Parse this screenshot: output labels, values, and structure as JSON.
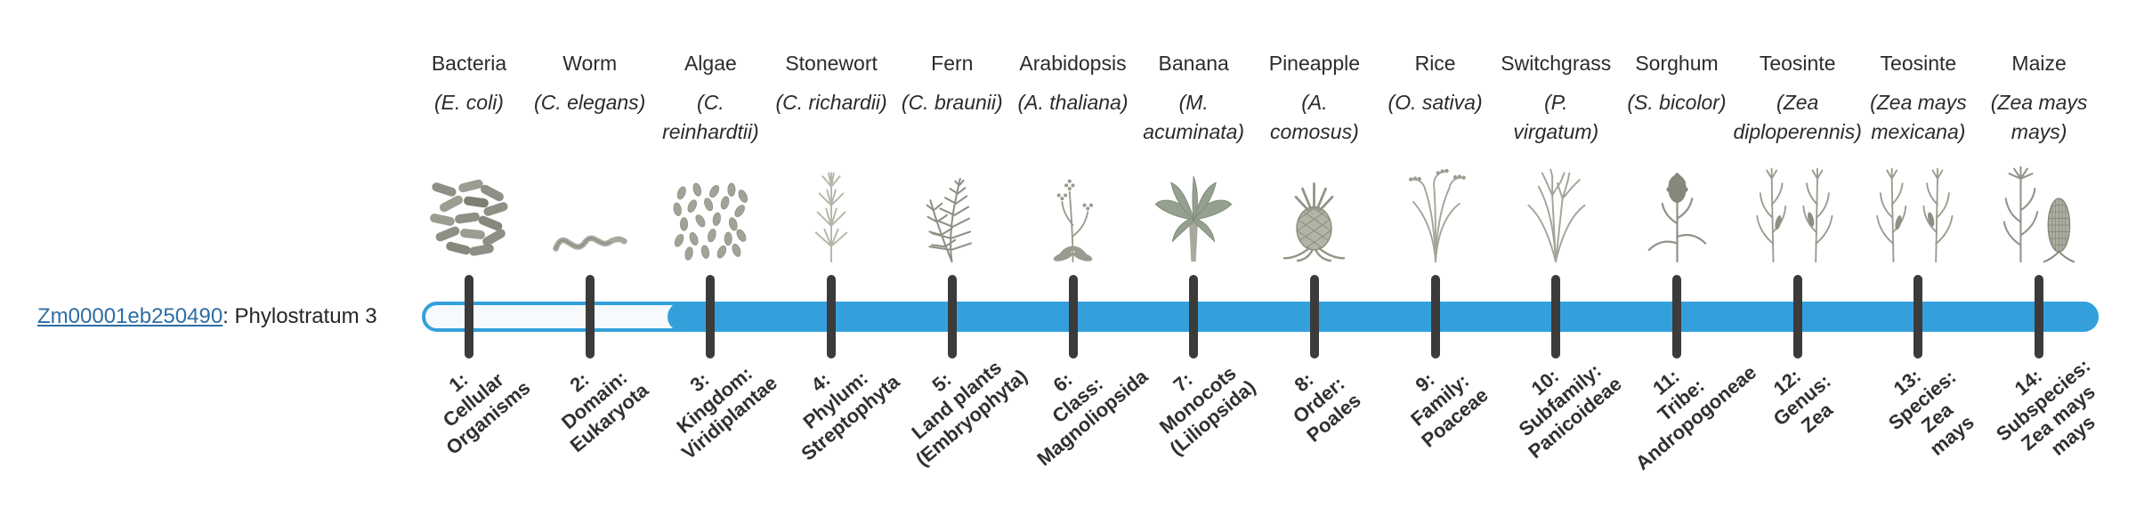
{
  "gene": {
    "id": "Zm00001eb250490",
    "suffix": ": Phylostratum 3",
    "phylostratum": 3
  },
  "colors": {
    "bar_blue": "#33a0dc",
    "track_fill": "#f6fafd",
    "tick": "#3b3b3b",
    "link_blue": "#2e6da4"
  },
  "organisms": [
    {
      "common": "Bacteria",
      "sci_lines": [
        "(E. coli)"
      ],
      "icon": "bacteria"
    },
    {
      "common": "Worm",
      "sci_lines": [
        "(C. elegans)"
      ],
      "icon": "worm"
    },
    {
      "common": "Algae",
      "sci_lines": [
        "(C.",
        "reinhardtii)"
      ],
      "icon": "algae"
    },
    {
      "common": "Stonewort",
      "sci_lines": [
        "(C. richardii)"
      ],
      "icon": "stonewort"
    },
    {
      "common": "Fern",
      "sci_lines": [
        "(C. braunii)"
      ],
      "icon": "fern"
    },
    {
      "common": "Arabidopsis",
      "sci_lines": [
        "(A. thaliana)"
      ],
      "icon": "arabidopsis"
    },
    {
      "common": "Banana",
      "sci_lines": [
        "(M.",
        "acuminata)"
      ],
      "icon": "banana"
    },
    {
      "common": "Pineapple",
      "sci_lines": [
        "(A.",
        "comosus)"
      ],
      "icon": "pineapple"
    },
    {
      "common": "Rice",
      "sci_lines": [
        "(O. sativa)"
      ],
      "icon": "rice"
    },
    {
      "common": "Switchgrass",
      "sci_lines": [
        "(P.",
        "virgatum)"
      ],
      "icon": "switchgrass"
    },
    {
      "common": "Sorghum",
      "sci_lines": [
        "(S. bicolor)"
      ],
      "icon": "sorghum"
    },
    {
      "common": "Teosinte",
      "sci_lines": [
        "(Zea",
        "diploperennis)"
      ],
      "icon": "teosinte"
    },
    {
      "common": "Teosinte",
      "sci_lines": [
        "(Zea mays",
        "mexicana)"
      ],
      "icon": "teosinte2"
    },
    {
      "common": "Maize",
      "sci_lines": [
        "(Zea mays",
        "mays)"
      ],
      "icon": "maize"
    }
  ],
  "phylostrata": [
    {
      "label_lines": [
        "1:",
        "Cellular",
        "Organisms"
      ]
    },
    {
      "label_lines": [
        "2:",
        "Domain:",
        "Eukaryota"
      ]
    },
    {
      "label_lines": [
        "3:",
        "Kingdom:",
        "Viridiplantae"
      ]
    },
    {
      "label_lines": [
        "4:",
        "Phylum:",
        "Streptophyta"
      ]
    },
    {
      "label_lines": [
        "5:",
        "Land plants",
        "(Embryophyta)"
      ]
    },
    {
      "label_lines": [
        "6:",
        "Class:",
        "Magnoliopsida"
      ]
    },
    {
      "label_lines": [
        "7:",
        "Monocots",
        "(Liliopsida)"
      ]
    },
    {
      "label_lines": [
        "8:",
        "Order:",
        "Poales"
      ]
    },
    {
      "label_lines": [
        "9:",
        "Family:",
        "Poaceae"
      ]
    },
    {
      "label_lines": [
        "10:",
        "Subfamily:",
        "Panicoideae"
      ]
    },
    {
      "label_lines": [
        "11:",
        "Tribe:",
        "Andropogoneae"
      ]
    },
    {
      "label_lines": [
        "12:",
        "Genus:",
        "Zea"
      ]
    },
    {
      "label_lines": [
        "13:",
        "Species:",
        "Zea",
        "mays"
      ]
    },
    {
      "label_lines": [
        "14:",
        "Subspecies:",
        "Zea mays",
        "mays"
      ]
    }
  ]
}
